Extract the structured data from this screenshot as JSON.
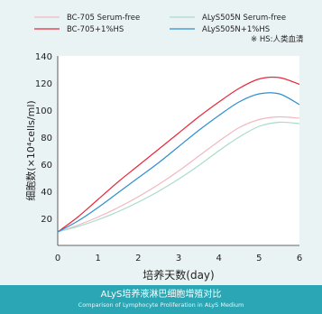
{
  "chart_data": {
    "type": "line",
    "title": "ALyS培养液淋巴细胞增殖对比",
    "subtitle": "Comparison of Lymphocyte Proliferation in ALyS Medium",
    "xlabel": "培养天数(day)",
    "ylabel": "细胞数(×10⁴cells/ml)",
    "x_ticks": [
      0,
      1,
      2,
      3,
      4,
      5,
      6
    ],
    "y_ticks": [
      20,
      40,
      60,
      80,
      100,
      120,
      140
    ],
    "xlim": [
      0,
      6
    ],
    "ylim": [
      0,
      140
    ],
    "grid": false,
    "legend_position": "top",
    "legend_note": "※ HS:人类血清",
    "series": [
      {
        "name": "BC-705 Serum-free",
        "color": "#f2b8c0",
        "x": [
          0,
          0.5,
          1,
          1.5,
          2,
          2.5,
          3,
          3.5,
          4,
          4.5,
          5,
          5.5,
          6
        ],
        "y": [
          10,
          15,
          21,
          28,
          36,
          45,
          55,
          66,
          77,
          87,
          93,
          95,
          94
        ]
      },
      {
        "name": "ALyS505N Serum-free",
        "color": "#a9dccc",
        "x": [
          0,
          0.5,
          1,
          1.5,
          2,
          2.5,
          3,
          3.5,
          4,
          4.5,
          5,
          5.5,
          6
        ],
        "y": [
          10,
          14,
          19,
          25,
          32,
          40,
          49,
          59,
          70,
          80,
          88,
          91,
          90
        ]
      },
      {
        "name": "BC-705+1%HS",
        "color": "#e8283a",
        "x": [
          0,
          0.5,
          1,
          1.5,
          2,
          2.5,
          3,
          3.5,
          4,
          4.5,
          5,
          5.5,
          6
        ],
        "y": [
          10,
          21,
          34,
          47,
          59,
          71,
          83,
          95,
          106,
          116,
          123,
          124,
          119
        ]
      },
      {
        "name": "ALyS505N+1%HS",
        "color": "#2e8fd0",
        "x": [
          0,
          0.5,
          1,
          1.5,
          2,
          2.5,
          3,
          3.5,
          4,
          4.5,
          5,
          5.5,
          6
        ],
        "y": [
          10,
          18,
          28,
          39,
          50,
          61,
          73,
          85,
          96,
          106,
          112,
          112,
          104
        ]
      }
    ]
  }
}
